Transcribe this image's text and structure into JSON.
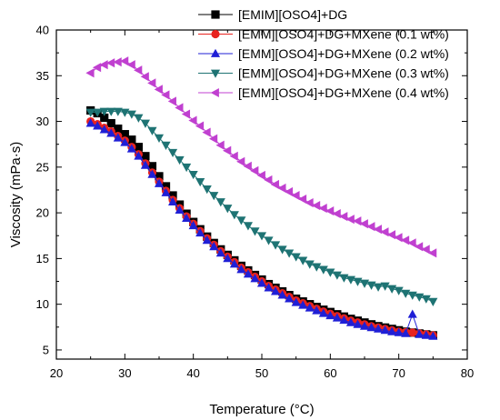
{
  "chart_data": {
    "type": "line",
    "title": "",
    "xlabel": "Temperature (°C)",
    "ylabel": "Viscosity (mPa·s)",
    "xlim": [
      20,
      80
    ],
    "ylim": [
      4,
      40
    ],
    "x_ticks": [
      "20",
      "30",
      "40",
      "50",
      "60",
      "70",
      "80"
    ],
    "y_ticks": [
      "5",
      "10",
      "15",
      "20",
      "25",
      "30",
      "35",
      "40"
    ],
    "grid": false,
    "legend_position": "top-right",
    "series": [
      {
        "name": "[EMIM][OSO4]+DG",
        "color": "#000000",
        "marker": "square",
        "x": [
          25,
          26,
          27,
          28,
          29,
          30,
          31,
          32,
          33,
          34,
          35,
          36,
          37,
          38,
          39,
          40,
          41,
          42,
          43,
          44,
          45,
          46,
          47,
          48,
          49,
          50,
          51,
          52,
          53,
          54,
          55,
          56,
          57,
          58,
          59,
          60,
          61,
          62,
          63,
          64,
          65,
          66,
          67,
          68,
          69,
          70,
          71,
          72,
          73,
          74,
          75
        ],
        "y": [
          31.2,
          30.9,
          30.4,
          29.8,
          29.2,
          28.6,
          28.0,
          27.2,
          26.2,
          25.1,
          24.0,
          22.9,
          21.9,
          20.9,
          19.9,
          19.0,
          18.2,
          17.4,
          16.7,
          16.0,
          15.4,
          14.8,
          14.2,
          13.7,
          13.2,
          12.7,
          12.2,
          11.8,
          11.4,
          11.0,
          10.6,
          10.3,
          10.0,
          9.7,
          9.4,
          9.15,
          8.9,
          8.65,
          8.4,
          8.2,
          8.0,
          7.8,
          7.6,
          7.45,
          7.3,
          7.15,
          7.0,
          6.9,
          6.8,
          6.7,
          6.6
        ]
      },
      {
        "name": "[EMM][OSO4]+DG+MXene (0.1 wt%)",
        "color": "#e8231f",
        "marker": "circle",
        "x": [
          25,
          26,
          27,
          28,
          29,
          30,
          31,
          32,
          33,
          34,
          35,
          36,
          37,
          38,
          39,
          40,
          41,
          42,
          43,
          44,
          45,
          46,
          47,
          48,
          49,
          50,
          51,
          52,
          53,
          54,
          55,
          56,
          57,
          58,
          59,
          60,
          61,
          62,
          63,
          64,
          65,
          66,
          67,
          68,
          69,
          70,
          71,
          72,
          73,
          74,
          75
        ],
        "y": [
          30.0,
          29.7,
          29.3,
          28.9,
          28.4,
          27.9,
          27.2,
          26.4,
          25.4,
          24.4,
          23.4,
          22.4,
          21.4,
          20.5,
          19.6,
          18.8,
          18.0,
          17.2,
          16.5,
          15.8,
          15.2,
          14.6,
          14.0,
          13.5,
          13.0,
          12.5,
          12.0,
          11.6,
          11.2,
          10.8,
          10.4,
          10.1,
          9.8,
          9.5,
          9.2,
          8.95,
          8.7,
          8.45,
          8.2,
          8.0,
          7.8,
          7.6,
          7.45,
          7.3,
          7.15,
          7.0,
          6.95,
          6.9,
          6.8,
          6.7,
          6.6
        ]
      },
      {
        "name": "[EMM][OSO4]+DG+MXene (0.2 wt%)",
        "color": "#1f1fd6",
        "marker": "triangle-up",
        "x": [
          25,
          26,
          27,
          28,
          29,
          30,
          31,
          32,
          33,
          34,
          35,
          36,
          37,
          38,
          39,
          40,
          41,
          42,
          43,
          44,
          45,
          46,
          47,
          48,
          49,
          50,
          51,
          52,
          53,
          54,
          55,
          56,
          57,
          58,
          59,
          60,
          61,
          62,
          63,
          64,
          65,
          66,
          67,
          68,
          69,
          70,
          71,
          72,
          73,
          74,
          75
        ],
        "y": [
          29.8,
          29.5,
          29.1,
          28.7,
          28.2,
          27.7,
          27.0,
          26.2,
          25.2,
          24.2,
          23.2,
          22.2,
          21.2,
          20.3,
          19.4,
          18.6,
          17.8,
          17.0,
          16.3,
          15.6,
          15.0,
          14.4,
          13.8,
          13.3,
          12.8,
          12.3,
          11.8,
          11.4,
          11.0,
          10.6,
          10.2,
          9.9,
          9.6,
          9.3,
          9.0,
          8.75,
          8.5,
          8.25,
          8.0,
          7.8,
          7.6,
          7.45,
          7.3,
          7.15,
          7.0,
          6.9,
          6.8,
          8.9,
          6.7,
          6.6,
          6.5
        ]
      },
      {
        "name": "[EMM][OSO4]+DG+MXene (0.3 wt%)",
        "color": "#1e7373",
        "marker": "triangle-down",
        "x": [
          25,
          26,
          27,
          28,
          29,
          30,
          31,
          32,
          33,
          34,
          35,
          36,
          37,
          38,
          39,
          40,
          41,
          42,
          43,
          44,
          45,
          46,
          47,
          48,
          49,
          50,
          51,
          52,
          53,
          54,
          55,
          56,
          57,
          58,
          59,
          60,
          61,
          62,
          63,
          64,
          65,
          66,
          67,
          68,
          69,
          70,
          71,
          72,
          73,
          74,
          75
        ],
        "y": [
          31.0,
          31.0,
          31.1,
          31.1,
          31.1,
          31.0,
          30.8,
          30.4,
          29.8,
          29.0,
          28.2,
          27.4,
          26.6,
          25.8,
          25.0,
          24.2,
          23.4,
          22.6,
          21.9,
          21.2,
          20.5,
          19.8,
          19.2,
          18.6,
          18.0,
          17.5,
          17.0,
          16.5,
          16.0,
          15.6,
          15.2,
          14.8,
          14.4,
          14.1,
          13.8,
          13.5,
          13.2,
          12.9,
          12.7,
          12.5,
          12.3,
          12.1,
          11.9,
          12.0,
          11.7,
          11.5,
          11.2,
          11.0,
          10.8,
          10.6,
          10.3
        ]
      },
      {
        "name": "[EMM][OSO4]+DG+MXene (0.4 wt%)",
        "color": "#c040d0",
        "marker": "triangle-left",
        "x": [
          25,
          26,
          27,
          28,
          29,
          30,
          31,
          32,
          33,
          34,
          35,
          36,
          37,
          38,
          39,
          40,
          41,
          42,
          43,
          44,
          45,
          46,
          47,
          48,
          49,
          50,
          51,
          52,
          53,
          54,
          55,
          56,
          57,
          58,
          59,
          60,
          61,
          62,
          63,
          64,
          65,
          66,
          67,
          68,
          69,
          70,
          71,
          72,
          73,
          74,
          75
        ],
        "y": [
          35.3,
          35.9,
          36.2,
          36.4,
          36.5,
          36.6,
          36.2,
          35.6,
          34.9,
          34.2,
          33.5,
          32.9,
          32.2,
          31.5,
          30.8,
          30.1,
          29.5,
          28.8,
          28.1,
          27.4,
          26.8,
          26.2,
          25.6,
          25.1,
          24.6,
          24.1,
          23.6,
          23.1,
          22.7,
          22.3,
          21.9,
          21.5,
          21.1,
          20.8,
          20.5,
          20.2,
          19.9,
          19.6,
          19.3,
          19.1,
          18.8,
          18.5,
          18.2,
          17.9,
          17.6,
          17.3,
          17.0,
          16.7,
          16.3,
          16.0,
          15.6
        ]
      }
    ]
  }
}
